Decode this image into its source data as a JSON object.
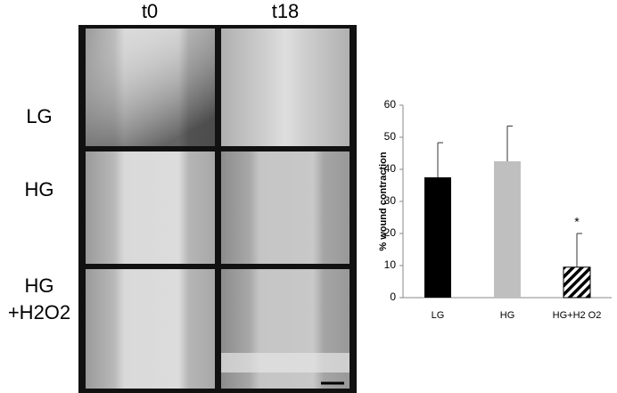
{
  "figure": {
    "column_labels": [
      "t0",
      "t18"
    ],
    "row_labels": [
      [
        "LG"
      ],
      [
        "HG"
      ],
      [
        "HG",
        "+H2O2"
      ]
    ]
  },
  "chart_data": {
    "type": "bar",
    "y_label": "% wound contraction",
    "categories": [
      "LG",
      "HG",
      "HG+H2 O2"
    ],
    "values": [
      37.5,
      42.5,
      9.5
    ],
    "errors": [
      10.8,
      11,
      10.5
    ],
    "colors": [
      "#000000",
      "#bfbfbf",
      "#000000"
    ],
    "hatch": [
      false,
      false,
      true
    ],
    "significance_marks": [
      null,
      null,
      "*"
    ],
    "ylim": [
      0,
      60
    ],
    "yticks": [
      0,
      10,
      20,
      30,
      40,
      50,
      60
    ],
    "grid": false
  }
}
